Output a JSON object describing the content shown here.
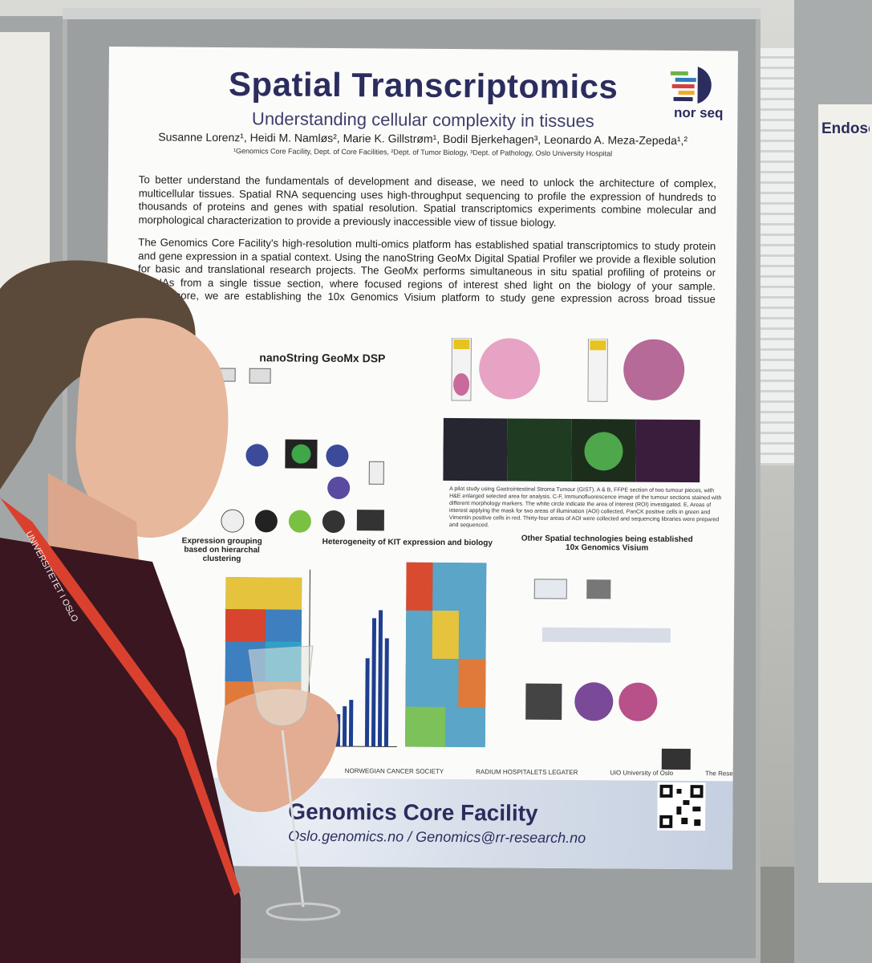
{
  "poster": {
    "title": "Spatial Transcriptomics",
    "subtitle": "Understanding cellular complexity in tissues",
    "authors": "Susanne Lorenz¹, Heidi M. Namløs², Marie K. Gillstrøm¹, Bodil Bjerkehagen³, Leonardo A. Meza-Zepeda¹,²",
    "affiliations": "¹Genomics Core Facility, Dept. of Core Facilities, ²Dept. of Tumor Biology, ³Dept. of Pathology, Oslo University Hospital",
    "logo_text": "nor seq",
    "intro_p1": "To better understand the fundamentals of development and disease, we need to unlock the architecture of complex, multicellular tissues. Spatial RNA sequencing uses high-throughput sequencing to profile the expression of hundreds to thousands of proteins and genes with spatial resolution. Spatial transcriptomics experiments combine molecular and morphological characterization to provide a previously inaccessible view of tissue biology.",
    "intro_p2": "The Genomics Core Facility's high-resolution multi-omics platform has established spatial transcriptomics to study protein and gene expression in a spatial context. Using the nanoString GeoMx Digital Spatial Profiler we provide a flexible solution for basic and translational research projects. The GeoMx performs simultaneous in situ spatial profiling of proteins or mRNAs from a single tissue section, where focused regions of interest shed light on the biology of your sample. Furthermore, we are establishing the 10x Genomics Visium platform to study gene expression across broad tissue sections.",
    "geomx_title": "nanoString GeoMx DSP",
    "fig_caption": "A pilot study using Gastrointestinal Stroma Tumour (GIST). A & B, FFPE section of two tumour pieces, with H&E enlarged selected area for analysis. C-F, Immunofluorescence image of the tumour sections stained with different morphology markers. The white circle indicate the area of interest (ROI) investigated. E, Areas of interest applying the mask for two areas of illumination (AOI) collected, PanCK positive cells in green and Vimentin positive cells in red. Thirty-four areas of AOI were collected and sequencing libraries were prepared and sequenced.",
    "expr_grouping_title": "Expression grouping based on hierarchal clustering",
    "kit_title": "Heterogeneity of KIT expression and biology",
    "other_title": "Other Spatial technologies being established 10x Genomics Visium",
    "sponsors": [
      "NORWEGIAN CANCER SOCIETY",
      "RADIUM HOSPITALETS LEGATER",
      "UiO University of Oslo",
      "The Research Council of Norway"
    ],
    "footer_title": "Genomics Core Facility",
    "footer_contact": "Oslo.genomics.no / Genomics@rr-research.no"
  },
  "right_poster": {
    "title": "Endosome"
  },
  "badge": {
    "text": "UNIVERSITETET I OSLO"
  },
  "colors": {
    "poster_title": "#2b2d5e",
    "board": "#9c9fa0",
    "lanyard": "#d9412e",
    "blouse": "#3a1620"
  }
}
